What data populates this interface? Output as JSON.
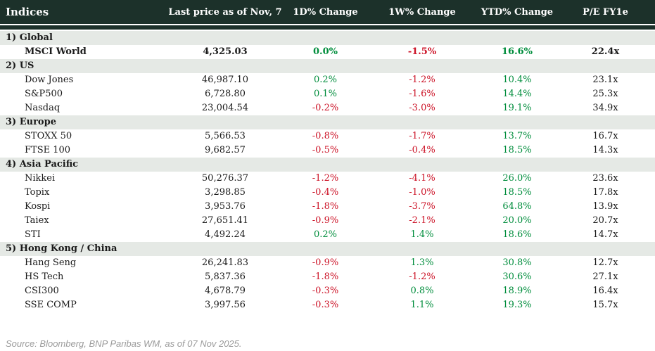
{
  "header": {
    "title": "Indices",
    "columns": [
      "Last price as of Nov, 7",
      "1D% Change",
      "1W% Change",
      "YTD% Change",
      "P/E FY1e"
    ]
  },
  "colors": {
    "header_bg": "#1c312a",
    "header_text": "#ffffff",
    "section_bg": "#e5e9e5",
    "positive": "#008d3c",
    "negative": "#cc1226",
    "source_text": "#9b9b9b"
  },
  "sections": [
    {
      "label": "1) Global",
      "rows": [
        {
          "name": "MSCI World",
          "price": "4,325.03",
          "d1": "0.0%",
          "w1": "-1.5%",
          "ytd": "16.6%",
          "pe": "22.4x",
          "bold": true
        }
      ]
    },
    {
      "label": "2) US",
      "rows": [
        {
          "name": "Dow Jones",
          "price": "46,987.10",
          "d1": "0.2%",
          "w1": "-1.2%",
          "ytd": "10.4%",
          "pe": "23.1x",
          "bold": false
        },
        {
          "name": "S&P500",
          "price": "6,728.80",
          "d1": "0.1%",
          "w1": "-1.6%",
          "ytd": "14.4%",
          "pe": "25.3x",
          "bold": false
        },
        {
          "name": "Nasdaq",
          "price": "23,004.54",
          "d1": "-0.2%",
          "w1": "-3.0%",
          "ytd": "19.1%",
          "pe": "34.9x",
          "bold": false
        }
      ]
    },
    {
      "label": "3) Europe",
      "rows": [
        {
          "name": "STOXX 50",
          "price": "5,566.53",
          "d1": "-0.8%",
          "w1": "-1.7%",
          "ytd": "13.7%",
          "pe": "16.7x",
          "bold": false
        },
        {
          "name": "FTSE 100",
          "price": "9,682.57",
          "d1": "-0.5%",
          "w1": "-0.4%",
          "ytd": "18.5%",
          "pe": "14.3x",
          "bold": false
        }
      ]
    },
    {
      "label": "4) Asia Pacific",
      "rows": [
        {
          "name": "Nikkei",
          "price": "50,276.37",
          "d1": "-1.2%",
          "w1": "-4.1%",
          "ytd": "26.0%",
          "pe": "23.6x",
          "bold": false
        },
        {
          "name": "Topix",
          "price": "3,298.85",
          "d1": "-0.4%",
          "w1": "-1.0%",
          "ytd": "18.5%",
          "pe": "17.8x",
          "bold": false
        },
        {
          "name": "Kospi",
          "price": "3,953.76",
          "d1": "-1.8%",
          "w1": "-3.7%",
          "ytd": "64.8%",
          "pe": "13.9x",
          "bold": false
        },
        {
          "name": "Taiex",
          "price": "27,651.41",
          "d1": "-0.9%",
          "w1": "-2.1%",
          "ytd": "20.0%",
          "pe": "20.7x",
          "bold": false
        },
        {
          "name": "STI",
          "price": "4,492.24",
          "d1": "0.2%",
          "w1": "1.4%",
          "ytd": "18.6%",
          "pe": "14.7x",
          "bold": false
        }
      ]
    },
    {
      "label": "5) Hong Kong / China",
      "rows": [
        {
          "name": "Hang Seng",
          "price": "26,241.83",
          "d1": "-0.9%",
          "w1": "1.3%",
          "ytd": "30.8%",
          "pe": "12.7x",
          "bold": false
        },
        {
          "name": "HS Tech",
          "price": "5,837.36",
          "d1": "-1.8%",
          "w1": "-1.2%",
          "ytd": "30.6%",
          "pe": "27.1x",
          "bold": false
        },
        {
          "name": "CSI300",
          "price": "4,678.79",
          "d1": "-0.3%",
          "w1": "0.8%",
          "ytd": "18.9%",
          "pe": "16.4x",
          "bold": false
        },
        {
          "name": "SSE COMP",
          "price": "3,997.56",
          "d1": "-0.3%",
          "w1": "1.1%",
          "ytd": "19.3%",
          "pe": "15.7x",
          "bold": false
        }
      ]
    }
  ],
  "footer": {
    "source": "Source: Bloomberg, BNP Paribas WM, as of 07 Nov 2025."
  },
  "chart_data": {
    "type": "table",
    "title": "Indices",
    "columns": [
      "Indices",
      "Last price as of Nov, 7",
      "1D% Change",
      "1W% Change",
      "YTD% Change",
      "P/E FY1e"
    ],
    "rows": [
      [
        "1) Global",
        "",
        "",
        "",
        "",
        ""
      ],
      [
        "MSCI World",
        4325.03,
        0.0,
        -1.5,
        16.6,
        22.4
      ],
      [
        "2) US",
        "",
        "",
        "",
        "",
        ""
      ],
      [
        "Dow Jones",
        46987.1,
        0.2,
        -1.2,
        10.4,
        23.1
      ],
      [
        "S&P500",
        6728.8,
        0.1,
        -1.6,
        14.4,
        25.3
      ],
      [
        "Nasdaq",
        23004.54,
        -0.2,
        -3.0,
        19.1,
        34.9
      ],
      [
        "3) Europe",
        "",
        "",
        "",
        "",
        ""
      ],
      [
        "STOXX 50",
        5566.53,
        -0.8,
        -1.7,
        13.7,
        16.7
      ],
      [
        "FTSE 100",
        9682.57,
        -0.5,
        -0.4,
        18.5,
        14.3
      ],
      [
        "4) Asia Pacific",
        "",
        "",
        "",
        "",
        ""
      ],
      [
        "Nikkei",
        50276.37,
        -1.2,
        -4.1,
        26.0,
        23.6
      ],
      [
        "Topix",
        3298.85,
        -0.4,
        -1.0,
        18.5,
        17.8
      ],
      [
        "Kospi",
        3953.76,
        -1.8,
        -3.7,
        64.8,
        13.9
      ],
      [
        "Taiex",
        27651.41,
        -0.9,
        -2.1,
        20.0,
        20.7
      ],
      [
        "STI",
        4492.24,
        0.2,
        1.4,
        18.6,
        14.7
      ],
      [
        "5) Hong Kong / China",
        "",
        "",
        "",
        "",
        ""
      ],
      [
        "Hang Seng",
        26241.83,
        -0.9,
        1.3,
        30.8,
        12.7
      ],
      [
        "HS Tech",
        5837.36,
        -1.8,
        -1.2,
        30.6,
        27.1
      ],
      [
        "CSI300",
        4678.79,
        -0.3,
        0.8,
        18.9,
        16.4
      ],
      [
        "SSE COMP",
        3997.56,
        -0.3,
        1.1,
        19.3,
        15.7
      ]
    ],
    "notes": "Negative % values rendered red (#cc1226), positive/zero rendered green (#008d3c). Source line: Source: Bloomberg, BNP Paribas WM, as of 07 Nov 2025."
  }
}
